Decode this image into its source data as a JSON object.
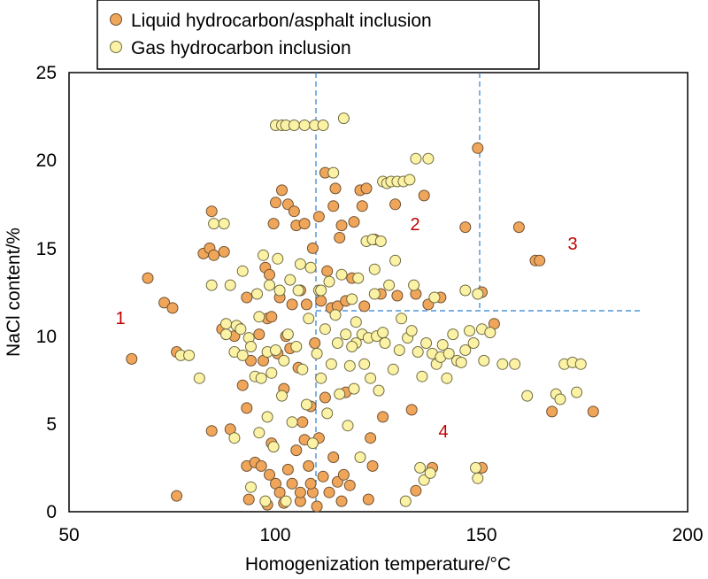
{
  "chart_data": {
    "type": "scatter",
    "xlabel": "Homogenization temperature/°C",
    "ylabel": "NaCl content/%",
    "xlim": [
      50,
      200
    ],
    "ylim": [
      0,
      25
    ],
    "xticks": [
      "50",
      "100",
      "150",
      "200"
    ],
    "yticks": [
      "0",
      "5",
      "10",
      "15",
      "20",
      "25"
    ],
    "grid": false,
    "legend": {
      "placement": "top-left"
    },
    "region_labels": [
      "1",
      "2",
      "3",
      "4"
    ],
    "series": [
      {
        "name": "Liquid hydrocarbon/asphalt inclusion",
        "color": "#f0a65a",
        "stroke": "#6e5030",
        "points": [
          [
            65.2,
            8.7
          ],
          [
            69.1,
            13.3
          ],
          [
            73.1,
            11.9
          ],
          [
            75.1,
            11.6
          ],
          [
            76.1,
            0.9
          ],
          [
            76.1,
            9.1
          ],
          [
            82.6,
            14.7
          ],
          [
            84.1,
            15.0
          ],
          [
            84.6,
            4.6
          ],
          [
            84.6,
            17.1
          ],
          [
            85.1,
            14.6
          ],
          [
            87.6,
            14.8
          ],
          [
            87.1,
            10.4
          ],
          [
            89.1,
            4.7
          ],
          [
            90.1,
            10.0
          ],
          [
            91.1,
            10.5
          ],
          [
            92.1,
            7.2
          ],
          [
            93.1,
            2.6
          ],
          [
            93.1,
            5.9
          ],
          [
            93.1,
            12.2
          ],
          [
            93.6,
            0.7
          ],
          [
            94.1,
            8.6
          ],
          [
            95.1,
            2.8
          ],
          [
            96.1,
            10.1
          ],
          [
            96.6,
            2.6
          ],
          [
            97.1,
            8.6
          ],
          [
            97.6,
            13.9
          ],
          [
            98.1,
            0.4
          ],
          [
            98.1,
            11.0
          ],
          [
            98.6,
            13.5
          ],
          [
            99.1,
            3.9
          ],
          [
            99.1,
            11.1
          ],
          [
            99.6,
            16.4
          ],
          [
            100.1,
            17.6
          ],
          [
            100.1,
            1.6
          ],
          [
            100.6,
            9.0
          ],
          [
            101.1,
            1.1
          ],
          [
            101.1,
            12.2
          ],
          [
            101.6,
            18.3
          ],
          [
            102.1,
            0.5
          ],
          [
            102.1,
            7.0
          ],
          [
            102.6,
            10.0
          ],
          [
            103.1,
            17.5
          ],
          [
            103.1,
            2.4
          ],
          [
            103.6,
            9.3
          ],
          [
            104.1,
            1.6
          ],
          [
            104.1,
            11.8
          ],
          [
            104.6,
            17.1
          ],
          [
            105.1,
            3.5
          ],
          [
            105.1,
            16.3
          ],
          [
            105.6,
            8.2
          ],
          [
            106.1,
            0.6
          ],
          [
            106.1,
            12.6
          ],
          [
            106.6,
            5.1
          ],
          [
            107.1,
            4.1
          ],
          [
            107.1,
            16.4
          ],
          [
            107.6,
            11.8
          ],
          [
            108.1,
            2.6
          ],
          [
            108.6,
            6.0
          ],
          [
            109.1,
            15.0
          ],
          [
            109.1,
            1.1
          ],
          [
            109.6,
            9.6
          ],
          [
            110.1,
            0.3
          ],
          [
            110.6,
            16.8
          ],
          [
            110.6,
            4.2
          ],
          [
            111.1,
            12.0
          ],
          [
            111.6,
            2.0
          ],
          [
            112.1,
            19.3
          ],
          [
            112.1,
            6.5
          ],
          [
            112.6,
            13.7
          ],
          [
            113.1,
            1.1
          ],
          [
            113.6,
            11.6
          ],
          [
            114.1,
            17.4
          ],
          [
            114.1,
            3.1
          ],
          [
            114.6,
            18.4
          ],
          [
            115.1,
            11.7
          ],
          [
            115.1,
            1.7
          ],
          [
            115.6,
            15.6
          ],
          [
            116.1,
            16.3
          ],
          [
            116.1,
            0.6
          ],
          [
            116.6,
            2.1
          ],
          [
            117.1,
            12.0
          ],
          [
            117.1,
            6.8
          ],
          [
            118.1,
            1.5
          ],
          [
            118.6,
            13.3
          ],
          [
            119.1,
            16.5
          ],
          [
            120.6,
            18.3
          ],
          [
            121.1,
            17.4
          ],
          [
            121.6,
            11.7
          ],
          [
            122.1,
            18.4
          ],
          [
            122.6,
            0.7
          ],
          [
            123.1,
            4.2
          ],
          [
            123.6,
            2.6
          ],
          [
            124.1,
            15.5
          ],
          [
            125.6,
            12.4
          ],
          [
            126.1,
            5.4
          ],
          [
            129.1,
            17.5
          ],
          [
            129.6,
            12.3
          ],
          [
            133.1,
            5.8
          ],
          [
            134.1,
            1.2
          ],
          [
            134.1,
            12.4
          ],
          [
            136.1,
            18.0
          ],
          [
            137.1,
            11.8
          ],
          [
            138.1,
            2.5
          ],
          [
            140.1,
            12.2
          ],
          [
            146.1,
            16.2
          ],
          [
            149.1,
            20.7
          ],
          [
            150.1,
            2.5
          ],
          [
            150.1,
            12.5
          ],
          [
            153.1,
            10.7
          ],
          [
            159.1,
            16.2
          ],
          [
            163.1,
            14.3
          ],
          [
            164.1,
            14.3
          ],
          [
            167.1,
            5.7
          ],
          [
            177.1,
            5.7
          ],
          [
            106.1,
            1.1
          ],
          [
            108.6,
            1.6
          ],
          [
            98.6,
            2.1
          ]
        ]
      },
      {
        "name": "Gas hydrocarbon inclusion",
        "color": "#fcf2a6",
        "stroke": "#6e6a40",
        "points": [
          [
            77.1,
            8.9
          ],
          [
            79.1,
            8.9
          ],
          [
            81.6,
            7.6
          ],
          [
            84.6,
            12.9
          ],
          [
            85.1,
            16.4
          ],
          [
            87.6,
            16.4
          ],
          [
            88.1,
            10.7
          ],
          [
            88.1,
            10.1
          ],
          [
            89.1,
            12.9
          ],
          [
            90.1,
            4.2
          ],
          [
            90.1,
            9.1
          ],
          [
            90.6,
            10.6
          ],
          [
            91.6,
            10.4
          ],
          [
            92.1,
            13.7
          ],
          [
            92.1,
            8.9
          ],
          [
            93.6,
            9.9
          ],
          [
            94.1,
            1.4
          ],
          [
            94.1,
            9.4
          ],
          [
            95.1,
            7.7
          ],
          [
            95.6,
            12.4
          ],
          [
            96.1,
            11.1
          ],
          [
            96.1,
            4.5
          ],
          [
            96.6,
            7.6
          ],
          [
            97.1,
            14.6
          ],
          [
            97.6,
            0.6
          ],
          [
            98.1,
            9.1
          ],
          [
            98.1,
            5.4
          ],
          [
            98.6,
            12.9
          ],
          [
            99.1,
            7.9
          ],
          [
            99.6,
            3.7
          ],
          [
            100.1,
            22.0
          ],
          [
            100.1,
            9.2
          ],
          [
            100.6,
            14.4
          ],
          [
            101.1,
            12.6
          ],
          [
            101.6,
            22.0
          ],
          [
            101.6,
            6.6
          ],
          [
            102.1,
            8.6
          ],
          [
            102.6,
            0.6
          ],
          [
            102.6,
            22.0
          ],
          [
            103.1,
            10.1
          ],
          [
            103.6,
            13.2
          ],
          [
            104.1,
            5.1
          ],
          [
            104.6,
            22.0
          ],
          [
            105.1,
            9.4
          ],
          [
            105.6,
            12.6
          ],
          [
            106.1,
            14.1
          ],
          [
            106.6,
            8.1
          ],
          [
            107.1,
            22.0
          ],
          [
            107.6,
            6.1
          ],
          [
            108.1,
            11.0
          ],
          [
            108.6,
            13.9
          ],
          [
            109.1,
            3.9
          ],
          [
            109.6,
            22.0
          ],
          [
            110.1,
            9.0
          ],
          [
            110.6,
            12.6
          ],
          [
            111.1,
            7.6
          ],
          [
            111.6,
            22.0
          ],
          [
            112.1,
            10.4
          ],
          [
            112.6,
            5.6
          ],
          [
            113.1,
            13.1
          ],
          [
            113.6,
            8.4
          ],
          [
            114.1,
            19.3
          ],
          [
            114.6,
            11.2
          ],
          [
            115.1,
            9.6
          ],
          [
            115.6,
            6.7
          ],
          [
            116.1,
            13.5
          ],
          [
            116.6,
            22.4
          ],
          [
            117.1,
            10.1
          ],
          [
            117.6,
            4.9
          ],
          [
            118.1,
            8.3
          ],
          [
            118.6,
            12.1
          ],
          [
            119.1,
            7.0
          ],
          [
            119.6,
            9.6
          ],
          [
            120.1,
            13.3
          ],
          [
            120.6,
            3.1
          ],
          [
            121.1,
            10.1
          ],
          [
            121.6,
            8.4
          ],
          [
            122.1,
            15.4
          ],
          [
            122.6,
            9.9
          ],
          [
            123.1,
            7.6
          ],
          [
            123.6,
            15.5
          ],
          [
            124.1,
            13.8
          ],
          [
            124.6,
            10.0
          ],
          [
            125.1,
            6.9
          ],
          [
            125.6,
            15.4
          ],
          [
            126.1,
            18.8
          ],
          [
            126.6,
            9.6
          ],
          [
            127.1,
            18.7
          ],
          [
            127.6,
            12.9
          ],
          [
            128.1,
            18.8
          ],
          [
            128.6,
            8.1
          ],
          [
            129.1,
            14.3
          ],
          [
            129.6,
            18.8
          ],
          [
            130.1,
            9.2
          ],
          [
            130.6,
            11.0
          ],
          [
            131.1,
            18.8
          ],
          [
            131.6,
            0.6
          ],
          [
            132.1,
            9.9
          ],
          [
            132.6,
            18.9
          ],
          [
            133.1,
            10.3
          ],
          [
            133.6,
            12.9
          ],
          [
            134.1,
            20.1
          ],
          [
            134.6,
            9.1
          ],
          [
            135.1,
            2.5
          ],
          [
            135.6,
            7.7
          ],
          [
            136.1,
            1.8
          ],
          [
            136.6,
            9.6
          ],
          [
            137.1,
            20.1
          ],
          [
            137.6,
            2.2
          ],
          [
            138.1,
            9.0
          ],
          [
            138.6,
            12.2
          ],
          [
            139.1,
            8.4
          ],
          [
            140.1,
            8.8
          ],
          [
            140.6,
            9.5
          ],
          [
            141.6,
            7.6
          ],
          [
            142.1,
            9.0
          ],
          [
            143.1,
            10.1
          ],
          [
            144.1,
            8.6
          ],
          [
            145.1,
            8.5
          ],
          [
            146.1,
            9.2
          ],
          [
            146.1,
            12.6
          ],
          [
            147.1,
            10.3
          ],
          [
            148.1,
            9.6
          ],
          [
            148.6,
            2.5
          ],
          [
            149.1,
            1.9
          ],
          [
            149.1,
            12.4
          ],
          [
            150.1,
            10.4
          ],
          [
            150.6,
            8.6
          ],
          [
            152.1,
            10.2
          ],
          [
            155.1,
            8.4
          ],
          [
            158.1,
            8.4
          ],
          [
            161.1,
            6.6
          ],
          [
            168.1,
            6.7
          ],
          [
            169.1,
            6.4
          ],
          [
            170.1,
            8.4
          ],
          [
            172.1,
            8.5
          ],
          [
            173.1,
            6.8
          ],
          [
            174.1,
            8.4
          ],
          [
            111.1,
            12.6
          ],
          [
            119.6,
            10.8
          ],
          [
            124.1,
            12.4
          ],
          [
            118.6,
            9.4
          ],
          [
            126.1,
            10.2
          ]
        ]
      }
    ]
  }
}
